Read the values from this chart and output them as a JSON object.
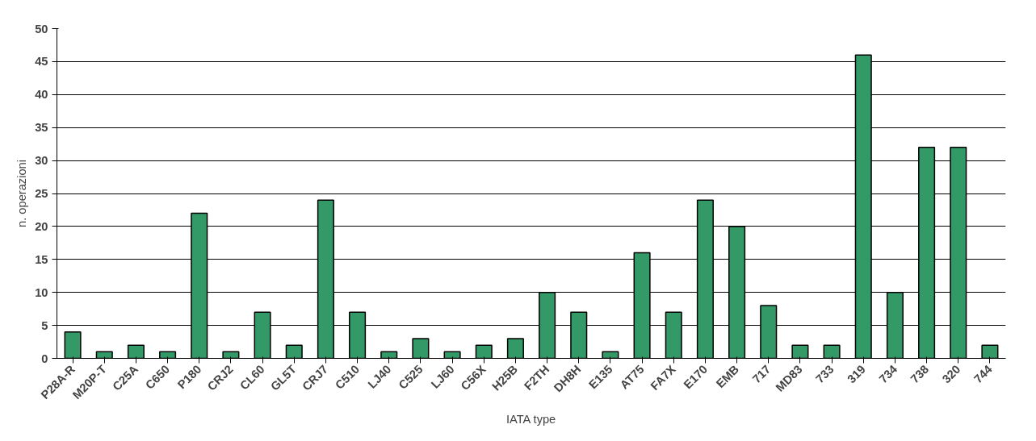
{
  "chart_data": {
    "type": "bar",
    "xlabel": "IATA type",
    "ylabel": "n. operazioni",
    "categories": [
      "P28A-R",
      "M20P-T",
      "C25A",
      "C650",
      "P180",
      "CRJ2",
      "CL60",
      "GL5T",
      "CRJ7",
      "C510",
      "LJ40",
      "C525",
      "LJ60",
      "C56X",
      "H25B",
      "F2TH",
      "DH8H",
      "E135",
      "AT75",
      "FA7X",
      "E170",
      "EMB",
      "717",
      "MD83",
      "733",
      "319",
      "734",
      "738",
      "320",
      "744"
    ],
    "values": [
      4,
      1,
      2,
      1,
      22,
      1,
      7,
      2,
      24,
      7,
      1,
      3,
      1,
      2,
      3,
      10,
      7,
      1,
      16,
      7,
      24,
      20,
      8,
      2,
      2,
      46,
      10,
      32,
      32,
      2
    ],
    "color": "#339966",
    "ylim": [
      0,
      50
    ],
    "yticks": [
      0,
      5,
      10,
      15,
      20,
      25,
      30,
      35,
      40,
      45,
      50
    ],
    "grid": "y"
  }
}
